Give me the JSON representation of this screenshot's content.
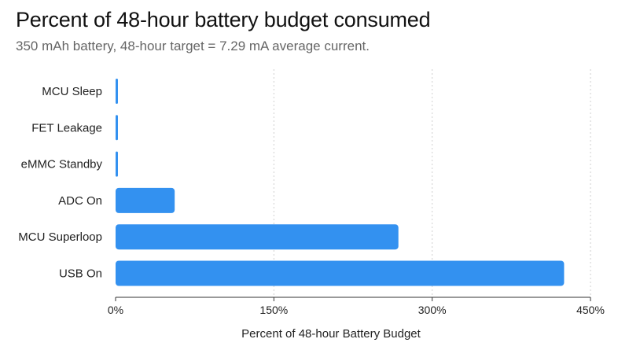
{
  "colors": {
    "bar": "#3391f0",
    "grid": "#cfcfcf",
    "axis": "#333333"
  },
  "chart_data": {
    "type": "bar",
    "orientation": "horizontal",
    "title": "Percent of 48-hour battery budget consumed",
    "subtitle": "350 mAh battery, 48-hour target = 7.29 mA average current.",
    "xlabel": "Percent of 48-hour Battery Budget",
    "ylabel": "",
    "categories": [
      "MCU Sleep",
      "FET Leakage",
      "eMMC Standby",
      "ADC On",
      "MCU Superloop",
      "USB On"
    ],
    "values": [
      0.5,
      0.8,
      1.5,
      56,
      268,
      425
    ],
    "xlim": [
      0,
      450
    ],
    "ticks": [
      {
        "value": 0,
        "label": "0%"
      },
      {
        "value": 150,
        "label": "150%"
      },
      {
        "value": 300,
        "label": "300%"
      },
      {
        "value": 450,
        "label": "450%"
      }
    ],
    "grid": "vertical dotted",
    "legend": "none"
  }
}
